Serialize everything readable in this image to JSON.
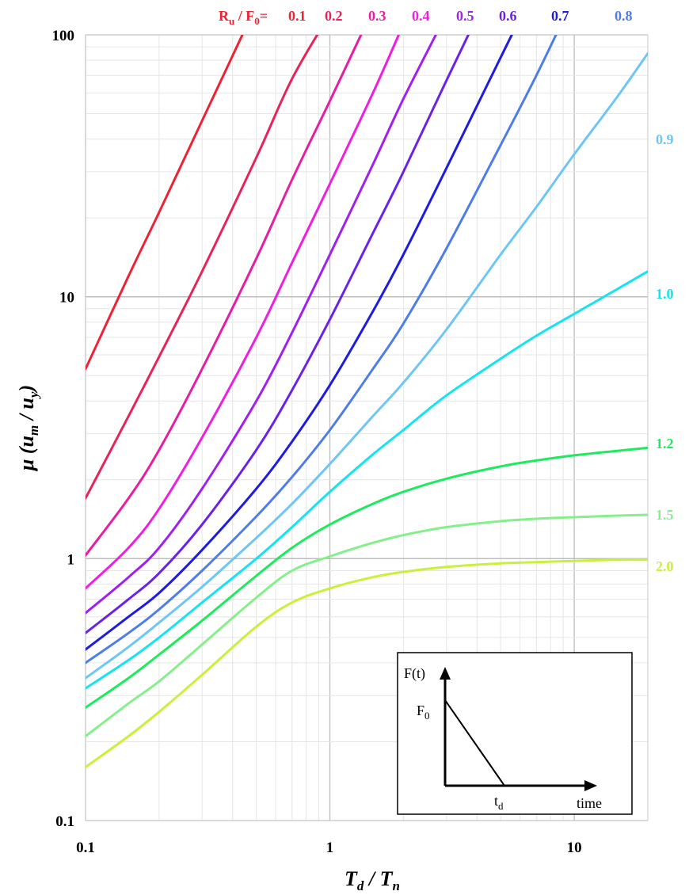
{
  "chart_data": {
    "type": "line",
    "title": "",
    "xlabel": {
      "main": "T",
      "sub1": "d",
      "slash": " / ",
      "main2": "T",
      "sub2": "n"
    },
    "ylabel": {
      "mu": "μ (",
      "u1": "u",
      "s1": "m",
      "slash": " / ",
      "u2": "u",
      "s2": "y",
      "close": ")"
    },
    "xscale": "log",
    "yscale": "log",
    "xlim": [
      0.1,
      20
    ],
    "ylim": [
      0.1,
      100
    ],
    "x_ticks": [
      {
        "value": 0.1,
        "label": "0.1"
      },
      {
        "value": 1,
        "label": "1"
      },
      {
        "value": 10,
        "label": "10"
      }
    ],
    "y_ticks": [
      {
        "value": 0.1,
        "label": "0.1"
      },
      {
        "value": 1,
        "label": "1"
      },
      {
        "value": 10,
        "label": "10"
      },
      {
        "value": 100,
        "label": "100"
      }
    ],
    "grid": "major and minor",
    "legend_prefix": {
      "main": "R",
      "sub": "u",
      "mid": " / F",
      "sub2": "0",
      "end": "= "
    },
    "x": [
      0.1,
      0.15,
      0.2,
      0.3,
      0.5,
      0.7,
      1.0,
      1.5,
      2.0,
      3.0,
      5.0,
      7.0,
      10.0,
      15.0,
      20.0
    ],
    "series": [
      {
        "name": "0.1",
        "color": "#ee2233",
        "values": [
          5.3,
          12.0,
          21,
          47,
          130,
          null,
          null,
          null,
          null,
          null,
          null,
          null,
          null,
          null,
          null
        ]
      },
      {
        "name": "0.2",
        "color": "#e8235a",
        "values": [
          1.7,
          3.5,
          5.9,
          12.5,
          34,
          68,
          120,
          null,
          null,
          null,
          null,
          null,
          null,
          null,
          null
        ]
      },
      {
        "name": "0.3",
        "color": "#e81ea0",
        "values": [
          1.03,
          1.7,
          2.6,
          5.3,
          14,
          28,
          56,
          125,
          null,
          null,
          null,
          null,
          null,
          null,
          null
        ]
      },
      {
        "name": "0.4",
        "color": "#f01ee0",
        "values": [
          0.77,
          1.1,
          1.55,
          2.9,
          7.0,
          13.5,
          27,
          60,
          110,
          null,
          null,
          null,
          null,
          null,
          null
        ]
      },
      {
        "name": "0.5",
        "color": "#a020f0",
        "values": [
          0.62,
          0.85,
          1.1,
          1.85,
          4.0,
          7.3,
          14.5,
          32,
          57,
          120,
          null,
          null,
          null,
          null,
          null
        ]
      },
      {
        "name": "0.6",
        "color": "#6a22e8",
        "values": [
          0.52,
          0.7,
          0.88,
          1.35,
          2.6,
          4.4,
          8.2,
          17.5,
          30,
          67,
          180,
          null,
          null,
          null,
          null
        ]
      },
      {
        "name": "0.7",
        "color": "#1d1ce0",
        "values": [
          0.45,
          0.6,
          0.74,
          1.08,
          1.85,
          2.8,
          4.6,
          8.8,
          14.5,
          31,
          82,
          155,
          null,
          null,
          null
        ]
      },
      {
        "name": "0.8",
        "color": "#4f7de8",
        "values": [
          0.4,
          0.52,
          0.64,
          0.9,
          1.45,
          2.05,
          3.1,
          5.3,
          7.9,
          15.3,
          38,
          70,
          140,
          null,
          null
        ]
      },
      {
        "name": "0.9",
        "color": "#6ec6f5",
        "values": [
          0.35,
          0.46,
          0.57,
          0.78,
          1.2,
          1.62,
          2.3,
          3.5,
          4.7,
          7.5,
          14.5,
          22,
          35,
          58,
          85
        ]
      },
      {
        "name": "1.0",
        "color": "#14e3f0",
        "values": [
          0.32,
          0.41,
          0.5,
          0.68,
          1.0,
          1.32,
          1.8,
          2.5,
          3.1,
          4.2,
          5.8,
          7.1,
          8.6,
          10.7,
          12.5
        ]
      },
      {
        "name": "1.2",
        "color": "#1cec5c",
        "values": [
          0.27,
          0.35,
          0.43,
          0.58,
          0.86,
          1.1,
          1.35,
          1.62,
          1.8,
          2.02,
          2.25,
          2.37,
          2.48,
          2.58,
          2.65
        ]
      },
      {
        "name": "1.5",
        "color": "#85ef8a",
        "values": [
          0.21,
          0.28,
          0.34,
          0.47,
          0.71,
          0.9,
          1.02,
          1.15,
          1.23,
          1.32,
          1.39,
          1.42,
          1.44,
          1.46,
          1.47
        ]
      },
      {
        "name": "2.0",
        "color": "#c9f03a",
        "values": [
          0.16,
          0.21,
          0.26,
          0.36,
          0.55,
          0.68,
          0.77,
          0.85,
          0.89,
          0.93,
          0.96,
          0.97,
          0.98,
          0.99,
          0.99
        ]
      }
    ],
    "legend": {
      "top_labels": [
        "0.1",
        "0.2",
        "0.3",
        "0.4",
        "0.5",
        "0.6",
        "0.7",
        "0.8"
      ],
      "right_labels": [
        "0.9",
        "1.0",
        "1.2",
        "1.5",
        "2.0"
      ]
    },
    "inset": {
      "y_axis_label": "F(t)",
      "peak_label_main": "F",
      "peak_label_sub": "0",
      "td_label_main": "t",
      "td_label_sub": "d",
      "x_axis_label": "time"
    }
  }
}
